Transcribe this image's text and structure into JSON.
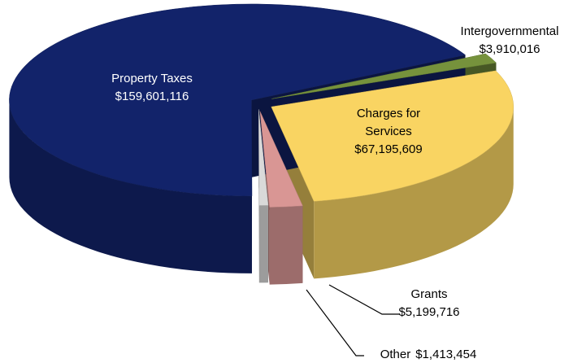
{
  "chart_data": {
    "type": "pie3d",
    "categories": [
      "Intergovernmental",
      "Charges for Services",
      "Grants",
      "Other",
      "Property Taxes"
    ],
    "values": [
      3910016,
      67195609,
      5199716,
      1413454,
      159601116
    ],
    "value_labels": [
      "$3,910,016",
      "$67,195,609",
      "$5,199,716",
      "$1,413,454",
      "$159,601,116"
    ],
    "colors": [
      "#76923c",
      "#f9d462",
      "#d99694",
      "#d9d9d9",
      "#12236a"
    ]
  }
}
